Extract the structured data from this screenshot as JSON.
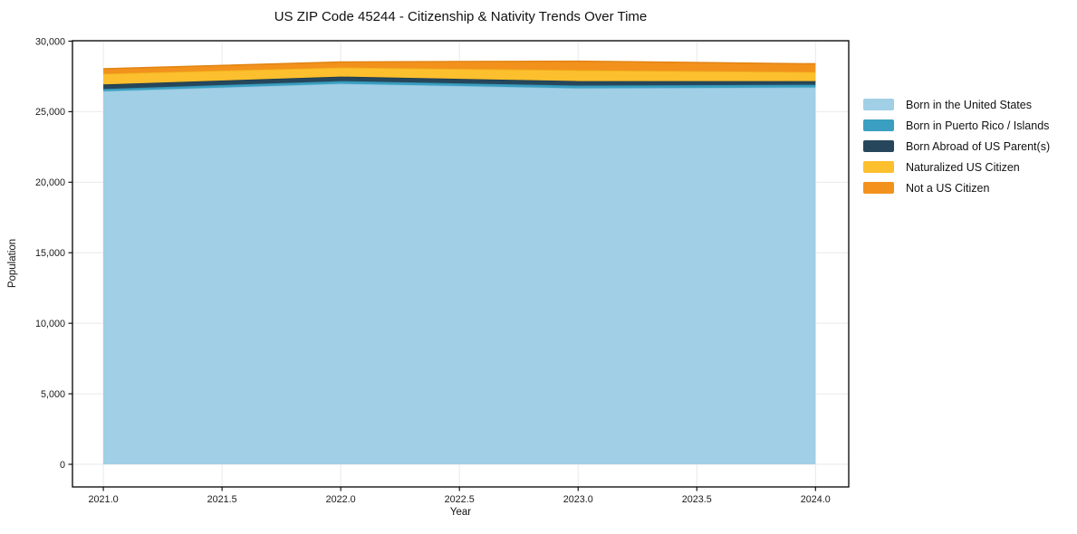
{
  "chart_data": {
    "type": "area",
    "stacked": true,
    "title": "US ZIP Code 45244 - Citizenship & Nativity Trends Over Time",
    "xlabel": "Year",
    "ylabel": "Population",
    "x": [
      2021,
      2022,
      2023,
      2024
    ],
    "series": [
      {
        "name": "Born in the United States",
        "color": "#A0CFE6",
        "edge": "#8CC3DE",
        "values": [
          26450,
          26980,
          26660,
          26720
        ]
      },
      {
        "name": "Born in Puerto Rico / Islands",
        "color": "#3A9FC1",
        "edge": "#3391B2",
        "values": [
          160,
          190,
          190,
          190
        ]
      },
      {
        "name": "Born Abroad of US Parent(s)",
        "color": "#26475B",
        "edge": "#1F3C4E",
        "values": [
          320,
          320,
          320,
          260
        ]
      },
      {
        "name": "Naturalized US Citizen",
        "color": "#FCBF2D",
        "edge": "#EFAF1C",
        "values": [
          760,
          640,
          770,
          640
        ]
      },
      {
        "name": "Not a US Citizen",
        "color": "#F2921D",
        "edge": "#E28412",
        "values": [
          350,
          390,
          640,
          580
        ]
      }
    ],
    "totals": [
      28040,
      28520,
      28580,
      28390
    ],
    "xlim": [
      2020.87,
      2024.14
    ],
    "ylim": [
      -1604,
      30030
    ],
    "xticks": [
      {
        "v": 2021.0,
        "label": "2021.0"
      },
      {
        "v": 2021.5,
        "label": "2021.5"
      },
      {
        "v": 2022.0,
        "label": "2022.0"
      },
      {
        "v": 2022.5,
        "label": "2022.5"
      },
      {
        "v": 2023.0,
        "label": "2023.0"
      },
      {
        "v": 2023.5,
        "label": "2023.5"
      },
      {
        "v": 2024.0,
        "label": "2024.0"
      }
    ],
    "yticks": [
      {
        "v": 0,
        "label": "0"
      },
      {
        "v": 5000,
        "label": "5,000"
      },
      {
        "v": 10000,
        "label": "10,000"
      },
      {
        "v": 15000,
        "label": "15,000"
      },
      {
        "v": 20000,
        "label": "20,000"
      },
      {
        "v": 25000,
        "label": "25,000"
      },
      {
        "v": 30000,
        "label": "30,000"
      }
    ],
    "grid": true,
    "grid_color": "#e9e9e9",
    "frame_color": "#000000",
    "text_color": "#1a1a1a",
    "background": "#ffffff",
    "legend_position": "outside-right"
  }
}
